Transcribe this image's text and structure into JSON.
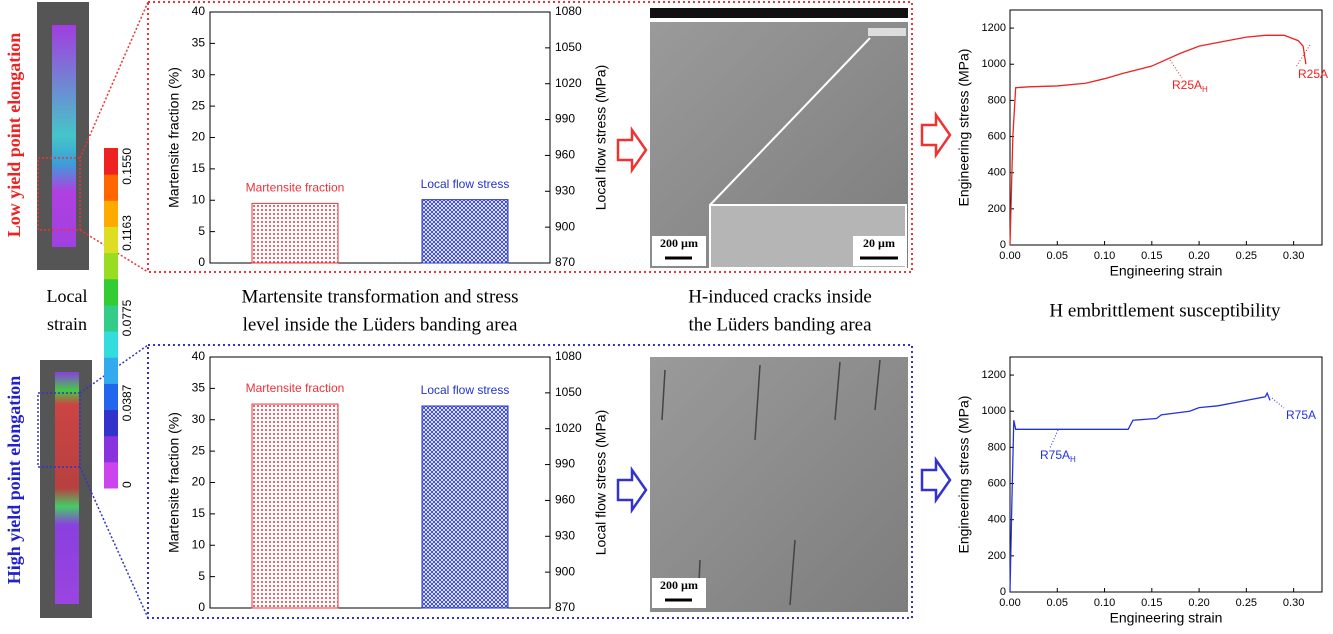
{
  "side_labels": [
    "Low yield point elongation",
    "High yield point elongation"
  ],
  "colorbar": {
    "title": [
      "Local",
      "strain"
    ],
    "ticks": [
      0,
      0.0387,
      0.0775,
      0.1163,
      {
        "value": 0.155,
        "label": "0.1550"
      }
    ]
  },
  "captions": [
    [
      "Martensite transformation and stress",
      "level inside the Lüders banding area"
    ],
    [
      "H-induced cracks inside",
      "the Lüders banding area"
    ],
    [
      "H embrittlement susceptibility"
    ]
  ],
  "scale_bars": [
    "200 µm",
    "20 µm",
    "200 µm"
  ],
  "chart_data": [
    {
      "type": "bar",
      "ylabel": "Martensite fraction (%)",
      "y2label": "Local flow stress (MPa)",
      "ylim": [
        0,
        40
      ],
      "yticks": [
        0,
        5,
        10,
        15,
        20,
        25,
        30,
        35,
        40
      ],
      "y2lim": [
        870,
        1080
      ],
      "y2ticks": [
        870,
        900,
        930,
        960,
        990,
        1020,
        1050,
        1080
      ],
      "series": [
        {
          "name": "Martensite fraction",
          "color": "#e8333a",
          "values": [
            9.5
          ]
        },
        {
          "name": "Local flow stress",
          "color": "#2233cc",
          "axis": "y2",
          "values": [
            923
          ]
        }
      ]
    },
    {
      "type": "bar",
      "ylabel": "Martensite fraction (%)",
      "y2label": "Local flow stress (MPa)",
      "ylim": [
        0,
        40
      ],
      "yticks": [
        0,
        5,
        10,
        15,
        20,
        25,
        30,
        35,
        40
      ],
      "y2lim": [
        870,
        1080
      ],
      "y2ticks": [
        870,
        900,
        930,
        960,
        990,
        1020,
        1050,
        1080
      ],
      "series": [
        {
          "name": "Martensite fraction",
          "color": "#e8333a",
          "values": [
            32.5
          ]
        },
        {
          "name": "Local flow stress",
          "color": "#2233cc",
          "axis": "y2",
          "values": [
            1039
          ]
        }
      ]
    },
    {
      "type": "line",
      "xlabel": "Engineering strain",
      "ylabel": "Engineering stress (MPa)",
      "xlim": [
        0,
        0.33
      ],
      "xticks": [
        {
          "value": 0,
          "label": "0.00"
        },
        0.05,
        {
          "value": 0.1,
          "label": "0.10"
        },
        0.15,
        {
          "value": 0.2,
          "label": "0.20"
        },
        0.25,
        {
          "value": 0.3,
          "label": "0.30"
        }
      ],
      "ylim": [
        0,
        1300
      ],
      "yticks": [
        0,
        200,
        400,
        600,
        800,
        1000,
        1200
      ],
      "x": [
        0,
        0.003,
        0.006,
        0.02,
        0.05,
        0.08,
        0.1,
        0.12,
        0.15,
        0.18,
        0.2,
        0.22,
        0.25,
        0.27,
        0.29,
        0.305,
        0.31,
        0.313
      ],
      "series": [
        {
          "name": "R25A",
          "color": "#ee2222",
          "values": [
            0,
            600,
            870,
            875,
            880,
            895,
            920,
            950,
            990,
            1060,
            1100,
            1120,
            1150,
            1160,
            1160,
            1130,
            1100,
            1000
          ]
        }
      ],
      "annotations": [
        {
          "text": "R25A",
          "sub": "H"
        },
        {
          "text": "R25A"
        }
      ]
    },
    {
      "type": "line",
      "xlabel": "Engineering strain",
      "ylabel": "Engineering stress (MPa)",
      "xlim": [
        0,
        0.33
      ],
      "xticks": [
        {
          "value": 0,
          "label": "0.00"
        },
        0.05,
        {
          "value": 0.1,
          "label": "0.10"
        },
        0.15,
        {
          "value": 0.2,
          "label": "0.20"
        },
        0.25,
        {
          "value": 0.3,
          "label": "0.30"
        }
      ],
      "ylim": [
        0,
        1300
      ],
      "yticks": [
        0,
        200,
        400,
        600,
        800,
        1000,
        1200
      ],
      "x": [
        0,
        0.002,
        0.004,
        0.006,
        0.02,
        0.05,
        0.125,
        0.13,
        0.155,
        0.16,
        0.19,
        0.2,
        0.22,
        0.25,
        0.27,
        0.272,
        0.275
      ],
      "series": [
        {
          "name": "R75A",
          "color": "#2233dd",
          "values": [
            0,
            500,
            950,
            900,
            900,
            900,
            900,
            950,
            960,
            980,
            1000,
            1020,
            1030,
            1060,
            1080,
            1100,
            1060
          ]
        }
      ],
      "annotations": [
        {
          "text": "R75A",
          "sub": "H"
        },
        {
          "text": "R75A"
        }
      ]
    }
  ]
}
